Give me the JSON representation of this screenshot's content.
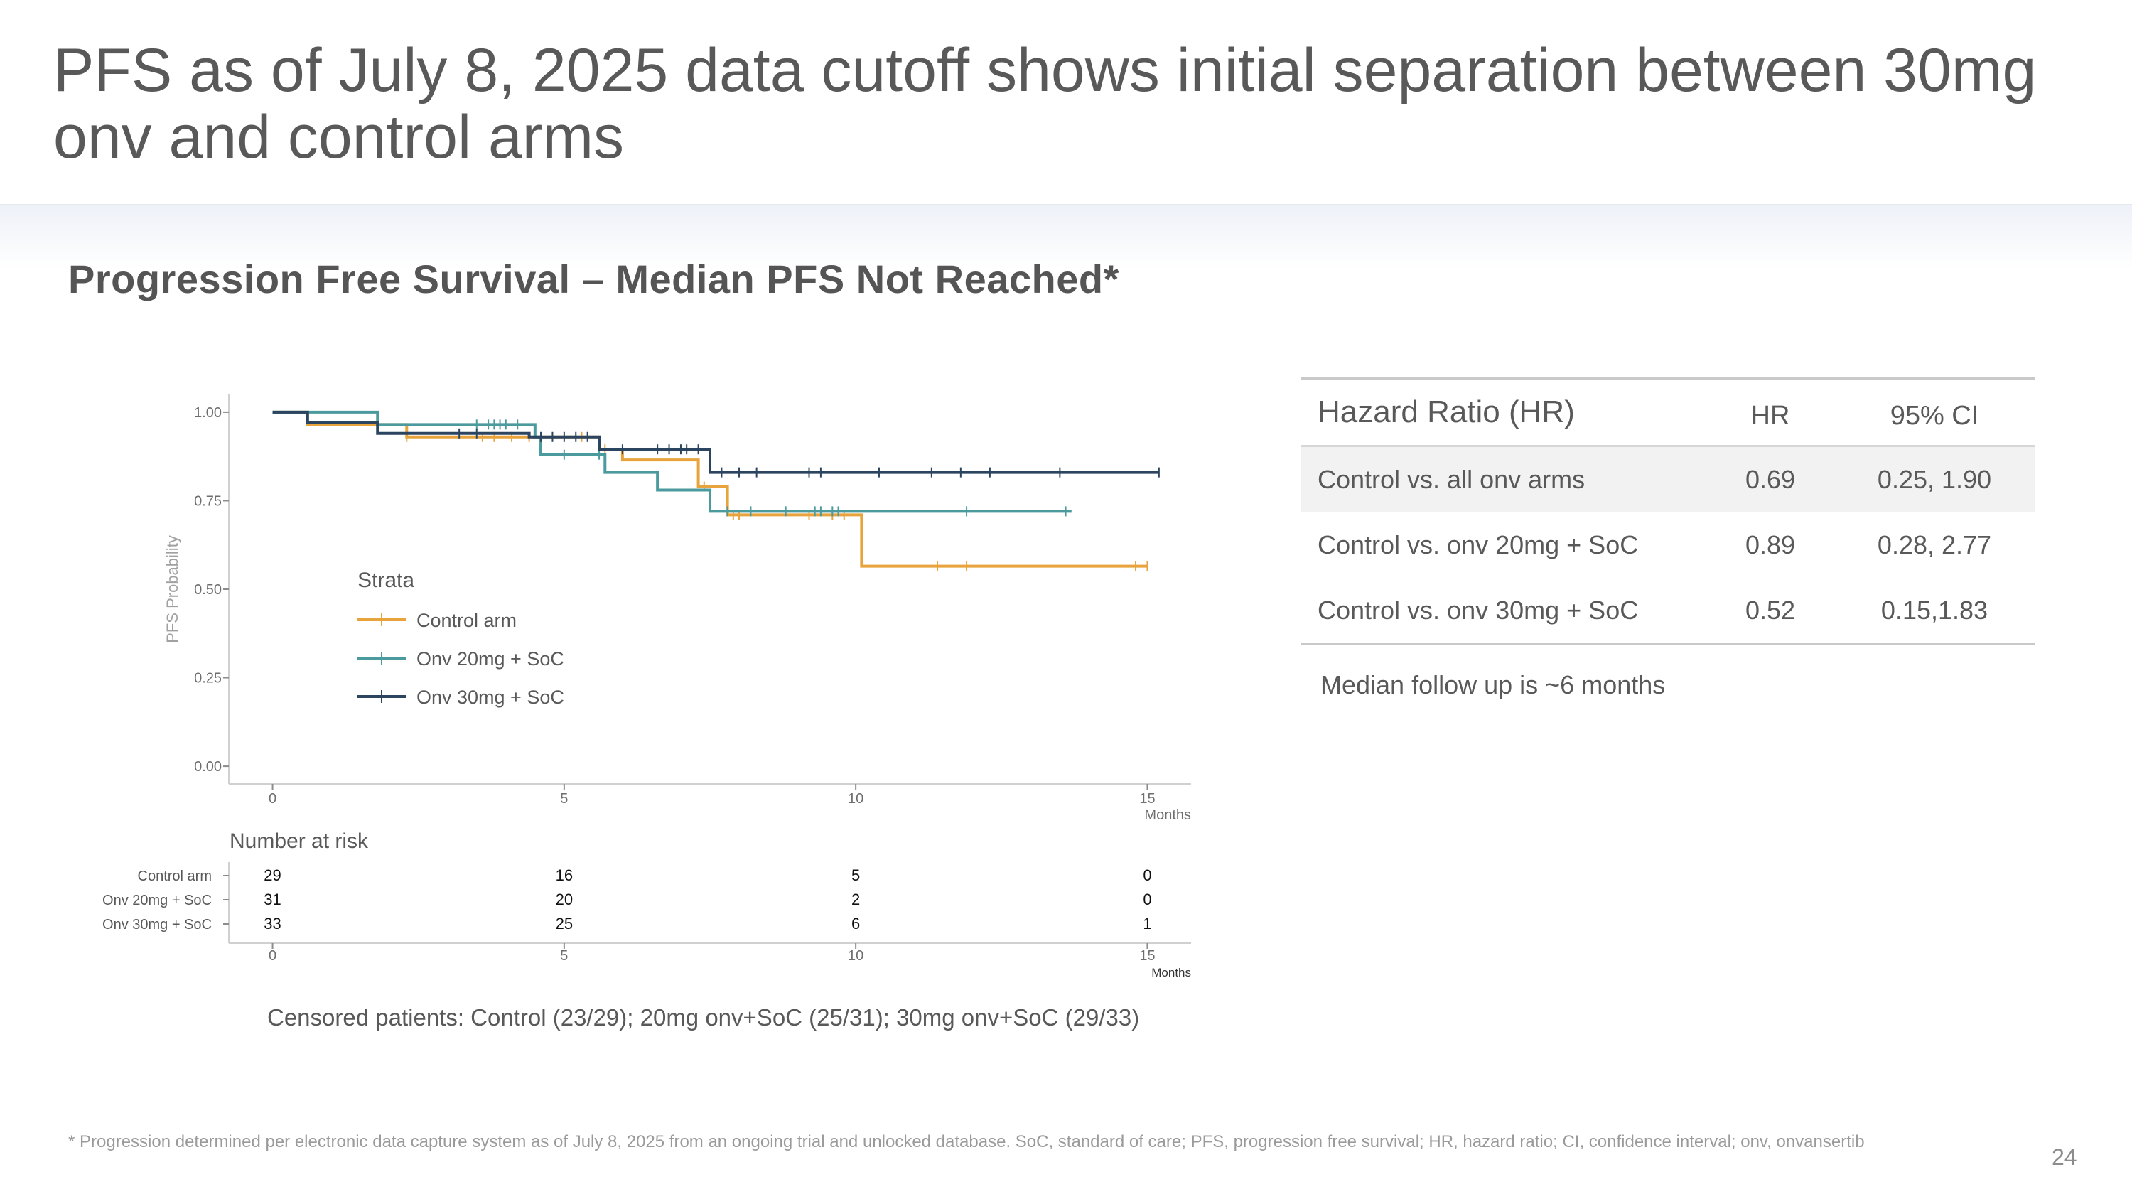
{
  "slide": {
    "title": "PFS as of July 8, 2025 data cutoff shows initial separation between 30mg onv and control arms",
    "subtitle": "Progression Free Survival – Median PFS Not Reached*",
    "censored_note": "Censored patients: Control (23/29); 20mg onv+SoC (25/31); 30mg onv+SoC (29/33)",
    "followup_note": "Median follow up is ~6 months",
    "footnote": "* Progression determined per electronic data capture system as of July 8, 2025 from an ongoing trial and unlocked database. SoC, standard of care; PFS, progression free survival; HR, hazard ratio; CI, confidence interval; onv, onvansertib",
    "page_number": "24"
  },
  "hazard_table": {
    "headers": [
      "Hazard Ratio (HR)",
      "HR",
      "95% CI"
    ],
    "rows": [
      {
        "label": "Control vs. all onv arms",
        "hr": "0.69",
        "ci": "0.25, 1.90"
      },
      {
        "label": "Control vs. onv 20mg + SoC",
        "hr": "0.89",
        "ci": "0.28, 2.77"
      },
      {
        "label": "Control vs. onv 30mg + SoC",
        "hr": "0.52",
        "ci": "0.15,1.83"
      }
    ]
  },
  "chart_data": {
    "type": "line",
    "subtype": "kaplan-meier step",
    "ylabel": "PFS Probability",
    "xlabel": "Months",
    "xlim": [
      -0.75,
      15.75
    ],
    "ylim": [
      -0.05,
      1.05
    ],
    "x_ticks": [
      "0",
      "5",
      "10",
      "15"
    ],
    "y_ticks": [
      "0.00",
      "0.25",
      "0.50",
      "0.75",
      "1.00"
    ],
    "legend_title": "Strata",
    "legend_position": "center-left",
    "grid": false,
    "series": [
      {
        "name": "Control arm",
        "color": "#e8a33d",
        "steps": [
          [
            0,
            1.0
          ],
          [
            0.6,
            0.965
          ],
          [
            2.3,
            0.93
          ],
          [
            5.6,
            0.895
          ],
          [
            6.0,
            0.865
          ],
          [
            7.3,
            0.79
          ],
          [
            7.8,
            0.71
          ],
          [
            10.1,
            0.565
          ],
          [
            15.0,
            0.565
          ]
        ],
        "censors": [
          2.3,
          3.6,
          3.8,
          4.1,
          4.4,
          5.3,
          5.7,
          7.4,
          7.9,
          8.0,
          9.2,
          9.6,
          9.8,
          11.4,
          11.9,
          14.8,
          15.0
        ]
      },
      {
        "name": "Onv 20mg + SoC",
        "color": "#4b9b9e",
        "steps": [
          [
            0,
            1.0
          ],
          [
            1.8,
            0.965
          ],
          [
            4.5,
            0.93
          ],
          [
            4.6,
            0.88
          ],
          [
            5.7,
            0.83
          ],
          [
            6.6,
            0.78
          ],
          [
            7.5,
            0.72
          ],
          [
            13.7,
            0.72
          ]
        ],
        "censors": [
          3.5,
          3.7,
          3.8,
          3.9,
          4.0,
          4.2,
          5.0,
          5.6,
          7.8,
          8.2,
          8.8,
          9.3,
          9.4,
          9.6,
          9.7,
          11.9,
          13.6
        ]
      },
      {
        "name": "Onv 30mg + SoC",
        "color": "#2b4560",
        "steps": [
          [
            0,
            1.0
          ],
          [
            0.6,
            0.97
          ],
          [
            1.8,
            0.94
          ],
          [
            4.4,
            0.93
          ],
          [
            5.6,
            0.895
          ],
          [
            7.5,
            0.83
          ],
          [
            15.2,
            0.83
          ]
        ],
        "censors": [
          3.2,
          3.5,
          4.6,
          4.8,
          5.0,
          5.2,
          5.4,
          6.0,
          6.6,
          6.8,
          7.0,
          7.1,
          7.3,
          7.7,
          8.0,
          8.3,
          9.2,
          9.4,
          10.4,
          11.3,
          11.8,
          12.3,
          13.5,
          15.2
        ]
      }
    ],
    "number_at_risk": {
      "title": "Number at risk",
      "times": [
        0,
        5,
        10,
        15
      ],
      "xlabel": "Months",
      "rows": [
        {
          "name": "Control arm",
          "counts": [
            "29",
            "16",
            "5",
            "0"
          ]
        },
        {
          "name": "Onv 20mg + SoC",
          "counts": [
            "31",
            "20",
            "2",
            "0"
          ]
        },
        {
          "name": "Onv 30mg + SoC",
          "counts": [
            "33",
            "25",
            "6",
            "1"
          ]
        }
      ]
    }
  }
}
